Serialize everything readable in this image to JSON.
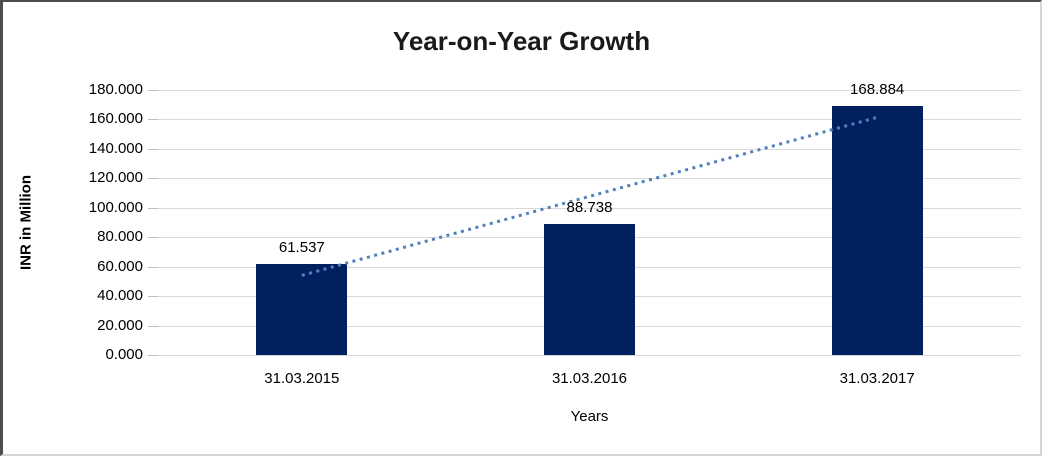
{
  "chart_data": {
    "type": "bar",
    "title": "Year-on-Year Growth",
    "xlabel": "Years",
    "ylabel": "INR in Million",
    "categories": [
      "31.03.2015",
      "31.03.2016",
      "31.03.2017"
    ],
    "values": [
      61.537,
      88.738,
      168.884
    ],
    "value_labels": [
      "61.537",
      "88.738",
      "168.884"
    ],
    "y_ticks": [
      0,
      20,
      40,
      60,
      80,
      100,
      120,
      140,
      160,
      180
    ],
    "y_tick_labels": [
      "0.000",
      "20.000",
      "40.000",
      "60.000",
      "80.000",
      "100.000",
      "120.000",
      "140.000",
      "160.000",
      "180.000"
    ],
    "ylim": [
      0,
      180
    ],
    "grid": true,
    "legend": false,
    "trendline": "linear-dotted",
    "colors": {
      "bar": "#002060",
      "trendline": "#4F81BD",
      "gridline": "#d9d9d9",
      "axis": "#bfbfbf"
    }
  }
}
